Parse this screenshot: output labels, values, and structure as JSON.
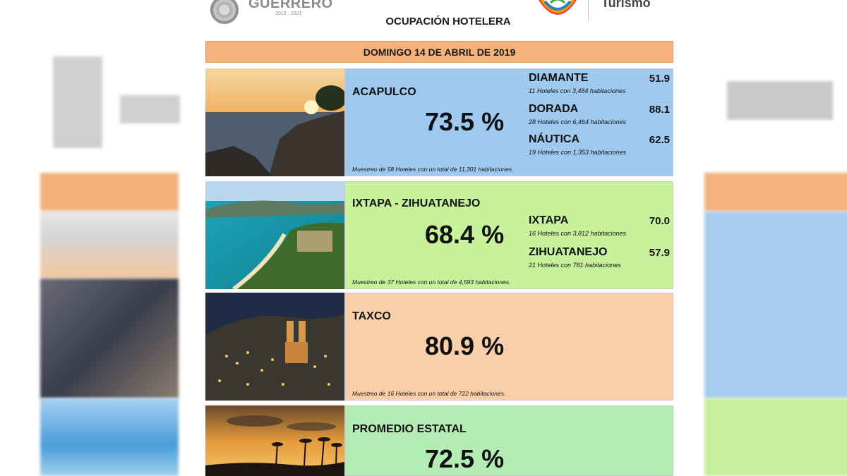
{
  "header": {
    "state_name": "GUERRERO",
    "state_years": "2015 - 2021",
    "report_title": "OCUPACIÓN HOTELERA",
    "tourism_label": "Turismo"
  },
  "date_bar": "DOMINGO 14 DE ABRIL DE 2019",
  "acapulco": {
    "region": "ACAPULCO",
    "pct": "73.5 %",
    "sample": "Muestreo de 58 Hoteles con un total de 11,301 habitaciones.",
    "zones": [
      {
        "name": "DIAMANTE",
        "value": "51.9",
        "desc": "11 Hoteles con 3,484 habitaciones"
      },
      {
        "name": "DORADA",
        "value": "88.1",
        "desc": "28 Hoteles con 6,464 habitaciones"
      },
      {
        "name": "NÁUTICA",
        "value": "62.5",
        "desc": "19 Hoteles con 1,353 habitaciones"
      }
    ]
  },
  "ixtapa": {
    "region": "IXTAPA - ZIHUATANEJO",
    "pct": "68.4 %",
    "sample": "Muestreo de 37 Hoteles con un total de 4,593 habitaciones.",
    "zones": [
      {
        "name": "IXTAPA",
        "value": "70.0",
        "desc": "16 Hoteles con 3,812 habitaciones"
      },
      {
        "name": "ZIHUATANEJO",
        "value": "57.9",
        "desc": "21 Hoteles con 781 habitaciones"
      }
    ]
  },
  "taxco": {
    "region": "TAXCO",
    "pct": "80.9 %",
    "sample": "Muestreo de 16 Hoteles con un total de 722 habitaciones."
  },
  "promedio": {
    "region": "PROMEDIO ESTATAL",
    "pct": "72.5 %"
  },
  "colors": {
    "acapulco_panel": "#9fc9ef",
    "ixtapa_panel": "#c7f19a",
    "taxco_panel": "#f9cfa9",
    "promedio_panel": "#b3edb3",
    "date_bar": "#f5b27b"
  }
}
